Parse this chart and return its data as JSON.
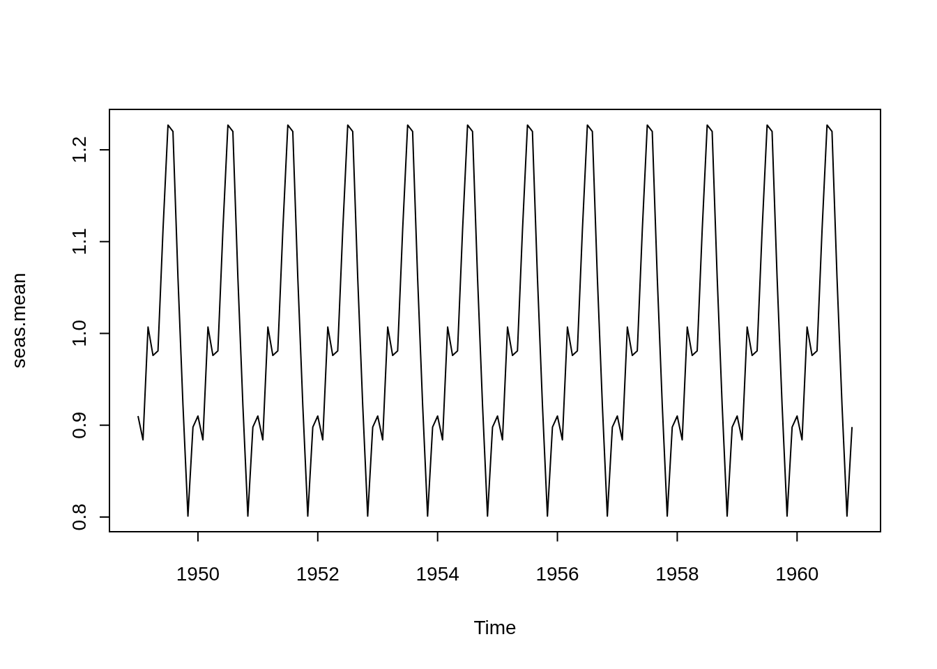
{
  "chart_data": {
    "type": "line",
    "xlabel": "Time",
    "ylabel": "seas.mean",
    "x": [
      1949,
      1949.083,
      1949.167,
      1949.25,
      1949.333,
      1949.417,
      1949.5,
      1949.583,
      1949.667,
      1949.75,
      1949.833,
      1949.917,
      1950,
      1950.083,
      1950.167,
      1950.25,
      1950.333,
      1950.417,
      1950.5,
      1950.583,
      1950.667,
      1950.75,
      1950.833,
      1950.917,
      1951,
      1951.083,
      1951.167,
      1951.25,
      1951.333,
      1951.417,
      1951.5,
      1951.583,
      1951.667,
      1951.75,
      1951.833,
      1951.917,
      1952,
      1952.083,
      1952.167,
      1952.25,
      1952.333,
      1952.417,
      1952.5,
      1952.583,
      1952.667,
      1952.75,
      1952.833,
      1952.917,
      1953,
      1953.083,
      1953.167,
      1953.25,
      1953.333,
      1953.417,
      1953.5,
      1953.583,
      1953.667,
      1953.75,
      1953.833,
      1953.917,
      1954,
      1954.083,
      1954.167,
      1954.25,
      1954.333,
      1954.417,
      1954.5,
      1954.583,
      1954.667,
      1954.75,
      1954.833,
      1954.917,
      1955,
      1955.083,
      1955.167,
      1955.25,
      1955.333,
      1955.417,
      1955.5,
      1955.583,
      1955.667,
      1955.75,
      1955.833,
      1955.917,
      1956,
      1956.083,
      1956.167,
      1956.25,
      1956.333,
      1956.417,
      1956.5,
      1956.583,
      1956.667,
      1956.75,
      1956.833,
      1956.917,
      1957,
      1957.083,
      1957.167,
      1957.25,
      1957.333,
      1957.417,
      1957.5,
      1957.583,
      1957.667,
      1957.75,
      1957.833,
      1957.917,
      1958,
      1958.083,
      1958.167,
      1958.25,
      1958.333,
      1958.417,
      1958.5,
      1958.583,
      1958.667,
      1958.75,
      1958.833,
      1958.917,
      1959,
      1959.083,
      1959.167,
      1959.25,
      1959.333,
      1959.417,
      1959.5,
      1959.583,
      1959.667,
      1959.75,
      1959.833,
      1959.917,
      1960,
      1960.083,
      1960.167,
      1960.25,
      1960.333,
      1960.417,
      1960.5,
      1960.583,
      1960.667,
      1960.75,
      1960.833,
      1960.917
    ],
    "series": [
      {
        "color": "#000000",
        "values": [
          0.91,
          0.884,
          1.007,
          0.976,
          0.981,
          1.113,
          1.227,
          1.22,
          1.06,
          0.922,
          0.801,
          0.898,
          0.91,
          0.884,
          1.007,
          0.976,
          0.981,
          1.113,
          1.227,
          1.22,
          1.06,
          0.922,
          0.801,
          0.898,
          0.91,
          0.884,
          1.007,
          0.976,
          0.981,
          1.113,
          1.227,
          1.22,
          1.06,
          0.922,
          0.801,
          0.898,
          0.91,
          0.884,
          1.007,
          0.976,
          0.981,
          1.113,
          1.227,
          1.22,
          1.06,
          0.922,
          0.801,
          0.898,
          0.91,
          0.884,
          1.007,
          0.976,
          0.981,
          1.113,
          1.227,
          1.22,
          1.06,
          0.922,
          0.801,
          0.898,
          0.91,
          0.884,
          1.007,
          0.976,
          0.981,
          1.113,
          1.227,
          1.22,
          1.06,
          0.922,
          0.801,
          0.898,
          0.91,
          0.884,
          1.007,
          0.976,
          0.981,
          1.113,
          1.227,
          1.22,
          1.06,
          0.922,
          0.801,
          0.898,
          0.91,
          0.884,
          1.007,
          0.976,
          0.981,
          1.113,
          1.227,
          1.22,
          1.06,
          0.922,
          0.801,
          0.898,
          0.91,
          0.884,
          1.007,
          0.976,
          0.981,
          1.113,
          1.227,
          1.22,
          1.06,
          0.922,
          0.801,
          0.898,
          0.91,
          0.884,
          1.007,
          0.976,
          0.981,
          1.113,
          1.227,
          1.22,
          1.06,
          0.922,
          0.801,
          0.898,
          0.91,
          0.884,
          1.007,
          0.976,
          0.981,
          1.113,
          1.227,
          1.22,
          1.06,
          0.922,
          0.801,
          0.898,
          0.91,
          0.884,
          1.007,
          0.976,
          0.981,
          1.113,
          1.227,
          1.22,
          1.06,
          0.922,
          0.801,
          0.898
        ]
      }
    ],
    "xlim": [
      1948.523,
      1961.393
    ],
    "ylim": [
      0.784,
      1.244
    ],
    "xticks": [
      1950,
      1952,
      1954,
      1956,
      1958,
      1960
    ],
    "yticks": [
      {
        "value": 0.8,
        "label": "0.8"
      },
      {
        "value": 0.9,
        "label": "0.9"
      },
      {
        "value": 1.0,
        "label": "1.0"
      },
      {
        "value": 1.1,
        "label": "1.1"
      },
      {
        "value": 1.2,
        "label": "1.2"
      }
    ],
    "marker": "none",
    "line_style": "solid"
  }
}
